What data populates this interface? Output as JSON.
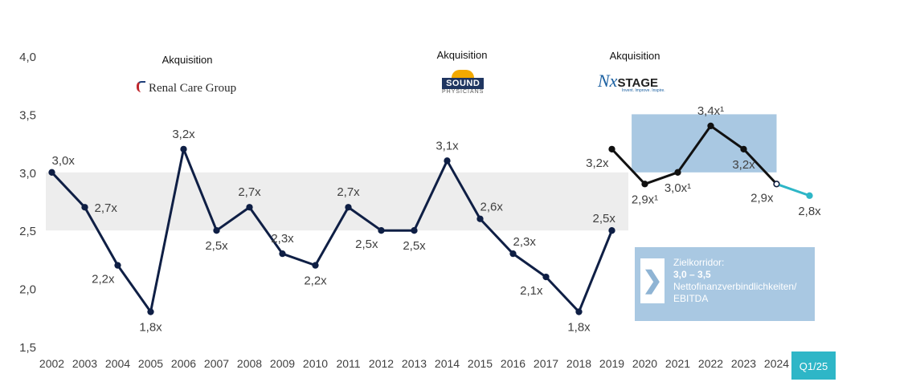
{
  "acquisitions": [
    {
      "label": "Akquisition",
      "company": "Renal Care Group"
    },
    {
      "label": "Akquisition",
      "company": "SOUND",
      "company_sub": "PHYSICIANS"
    },
    {
      "label": "Akquisition",
      "company": "NxSTAGE",
      "company_mark": "Nx",
      "company_name": "STAGE",
      "tagline": "Invent. Improve. Inspire."
    }
  ],
  "callout": {
    "line1": "Zielkorridor:",
    "line2": "3,0 – 3,5",
    "line3": "Nettofinanzverbindlichkeiten/",
    "line4": "EBITDA",
    "arrow": "❯"
  },
  "badge": "Q1/25",
  "colors": {
    "navy": "#0f1f45",
    "black": "#111111",
    "teal": "#2eb6c7",
    "grey_band": "#ededed",
    "blue_band": "#a9c8e2"
  },
  "chart_data": {
    "type": "line",
    "categories": [
      "2002",
      "2003",
      "2004",
      "2005",
      "2006",
      "2007",
      "2008",
      "2009",
      "2010",
      "2011",
      "2012",
      "2013",
      "2014",
      "2015",
      "2016",
      "2017",
      "2018",
      "2019",
      "2020",
      "2021",
      "2022",
      "2023",
      "2024",
      "Q1/25"
    ],
    "ylim": [
      1.5,
      4.0
    ],
    "yticks": [
      "1,5",
      "2,0",
      "2,5",
      "3,0",
      "3,5",
      "4,0"
    ],
    "bands": [
      {
        "from_index": 0,
        "to_index": 17.5,
        "y0": 2.5,
        "y1": 3.0,
        "color": "#ededed"
      },
      {
        "from_index": 17.6,
        "to_index": 22.0,
        "y0": 3.0,
        "y1": 3.5,
        "color": "#a9c8e2"
      }
    ],
    "series": [
      {
        "color": "#0f1f45",
        "points": [
          [
            0,
            3.0
          ],
          [
            1,
            2.7
          ],
          [
            2,
            2.2
          ],
          [
            3,
            1.8
          ],
          [
            4,
            3.2
          ],
          [
            5,
            2.5
          ],
          [
            6,
            2.7
          ],
          [
            7,
            2.3
          ],
          [
            8,
            2.2
          ],
          [
            9,
            2.7
          ],
          [
            10,
            2.5
          ],
          [
            11,
            2.5
          ],
          [
            12,
            3.1
          ],
          [
            13,
            2.6
          ],
          [
            14,
            2.3
          ],
          [
            15,
            2.1
          ],
          [
            16,
            1.8
          ],
          [
            17,
            2.5
          ]
        ]
      },
      {
        "color": "#111111",
        "points": [
          [
            17,
            3.2
          ],
          [
            18,
            2.9
          ],
          [
            19,
            3.0
          ],
          [
            20,
            3.4
          ],
          [
            21,
            3.2
          ],
          [
            22,
            2.9
          ]
        ]
      },
      {
        "color": "#2eb6c7",
        "points": [
          [
            22,
            2.9
          ],
          [
            23,
            2.8
          ]
        ]
      }
    ],
    "labels": [
      {
        "i": 0,
        "v": 3.0,
        "text": "3,0x",
        "pos": "above-right"
      },
      {
        "i": 1,
        "v": 2.7,
        "text": "2,7x",
        "pos": "right"
      },
      {
        "i": 2,
        "v": 2.2,
        "text": "2,2x",
        "pos": "below-left"
      },
      {
        "i": 3,
        "v": 1.8,
        "text": "1,8x",
        "pos": "below"
      },
      {
        "i": 4,
        "v": 3.2,
        "text": "3,2x",
        "pos": "above"
      },
      {
        "i": 5,
        "v": 2.5,
        "text": "2,5x",
        "pos": "below"
      },
      {
        "i": 6,
        "v": 2.7,
        "text": "2,7x",
        "pos": "above"
      },
      {
        "i": 7,
        "v": 2.3,
        "text": "2,3x",
        "pos": "above"
      },
      {
        "i": 8,
        "v": 2.2,
        "text": "2,2x",
        "pos": "below"
      },
      {
        "i": 9,
        "v": 2.7,
        "text": "2,7x",
        "pos": "above"
      },
      {
        "i": 10,
        "v": 2.5,
        "text": "2,5x",
        "pos": "below-left"
      },
      {
        "i": 11,
        "v": 2.5,
        "text": "2,5x",
        "pos": "below"
      },
      {
        "i": 12,
        "v": 3.1,
        "text": "3,1x",
        "pos": "above"
      },
      {
        "i": 13,
        "v": 2.6,
        "text": "2,6x",
        "pos": "above-right"
      },
      {
        "i": 14,
        "v": 2.3,
        "text": "2,3x",
        "pos": "above-right"
      },
      {
        "i": 15,
        "v": 2.1,
        "text": "2,1x",
        "pos": "below-left"
      },
      {
        "i": 16,
        "v": 1.8,
        "text": "1,8x",
        "pos": "below"
      },
      {
        "i": 17,
        "v": 2.5,
        "text": "2,5x",
        "pos": "above-left"
      },
      {
        "i": 17,
        "v": 3.2,
        "text": "3,2x",
        "pos": "below-left"
      },
      {
        "i": 18,
        "v": 2.9,
        "text": "2,9x¹",
        "pos": "below"
      },
      {
        "i": 19,
        "v": 3.0,
        "text": "3,0x¹",
        "pos": "below"
      },
      {
        "i": 20,
        "v": 3.4,
        "text": "3,4x¹",
        "pos": "above"
      },
      {
        "i": 21,
        "v": 3.2,
        "text": "3,2x",
        "pos": "below"
      },
      {
        "i": 22,
        "v": 2.9,
        "text": "2,9x",
        "pos": "below-left"
      },
      {
        "i": 23,
        "v": 2.8,
        "text": "2,8x",
        "pos": "below"
      }
    ]
  }
}
